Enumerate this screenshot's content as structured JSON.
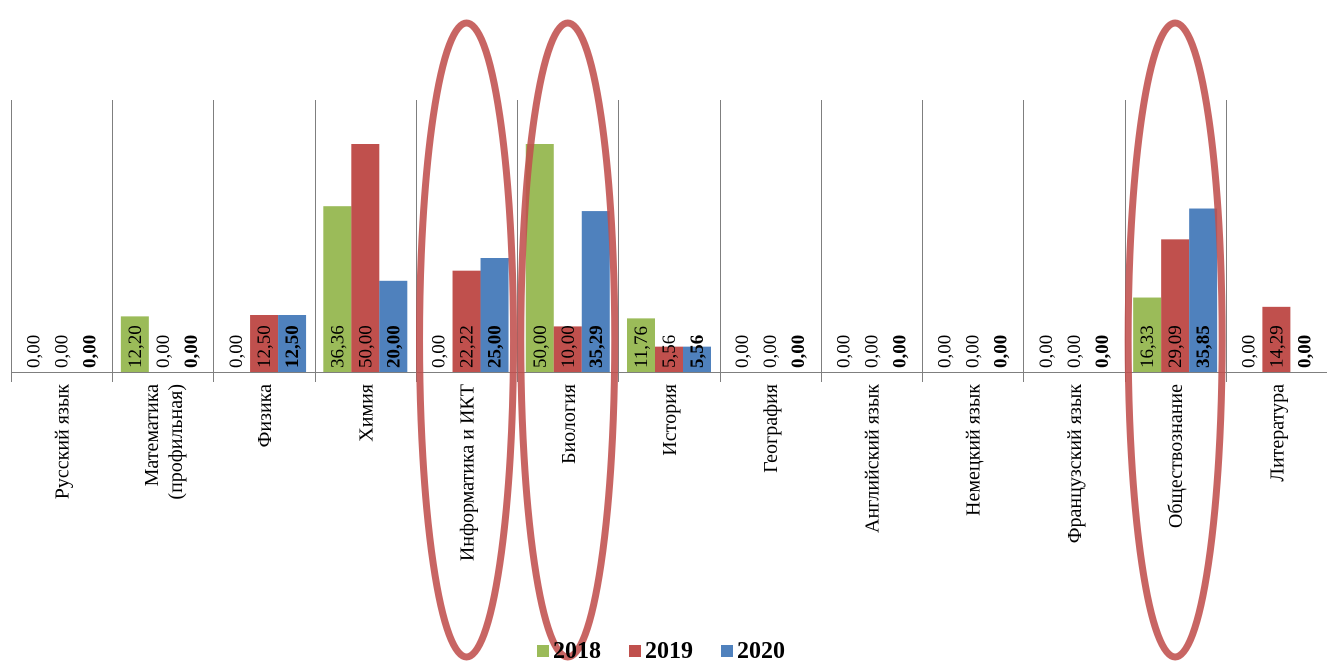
{
  "chart_data": {
    "type": "bar",
    "title": "",
    "xlabel": "",
    "ylabel": "",
    "ylim": [
      0,
      50
    ],
    "grid": false,
    "legend_position": "bottom",
    "categories": [
      [
        "Русский язык"
      ],
      [
        "Математика",
        "(профильная)"
      ],
      [
        "Физика"
      ],
      [
        "Химия"
      ],
      [
        "Информатика и ИКТ"
      ],
      [
        "Биология"
      ],
      [
        "История"
      ],
      [
        "География"
      ],
      [
        "Английский язык"
      ],
      [
        "Немецкий язык"
      ],
      [
        "Французский язык"
      ],
      [
        "Обществознание"
      ],
      [
        "Литература"
      ]
    ],
    "series": [
      {
        "name": "2018",
        "color": "#9BBB59",
        "bold_labels": false,
        "values": [
          0,
          12.2,
          0,
          36.36,
          0,
          50,
          11.76,
          0,
          0,
          0,
          0,
          16.33,
          0
        ],
        "labels": [
          "0,00",
          "12,20",
          "0,00",
          "36,36",
          "0,00",
          "50,00",
          "11,76",
          "0,00",
          "0,00",
          "0,00",
          "0,00",
          "16,33",
          "0,00"
        ]
      },
      {
        "name": "2019",
        "color": "#C0504D",
        "bold_labels": false,
        "values": [
          0,
          0,
          12.5,
          50,
          22.22,
          10,
          5.56,
          0,
          0,
          0,
          0,
          29.09,
          14.29
        ],
        "labels": [
          "0,00",
          "0,00",
          "12,50",
          "50,00",
          "22,22",
          "10,00",
          "5,56",
          "0,00",
          "0,00",
          "0,00",
          "0,00",
          "29,09",
          "14,29"
        ]
      },
      {
        "name": "2020",
        "color": "#4F81BD",
        "bold_labels": true,
        "values": [
          0,
          0,
          12.5,
          20,
          25,
          35.29,
          5.56,
          0,
          0,
          0,
          0,
          35.85,
          0
        ],
        "labels": [
          "0,00",
          "0,00",
          "12,50",
          "20,00",
          "25,00",
          "35,29",
          "5,56",
          "0,00",
          "0,00",
          "0,00",
          "0,00",
          "35,85",
          "0,00"
        ]
      }
    ],
    "highlighted_categories": [
      4,
      5,
      11
    ],
    "highlight_color": "#C0504D"
  }
}
